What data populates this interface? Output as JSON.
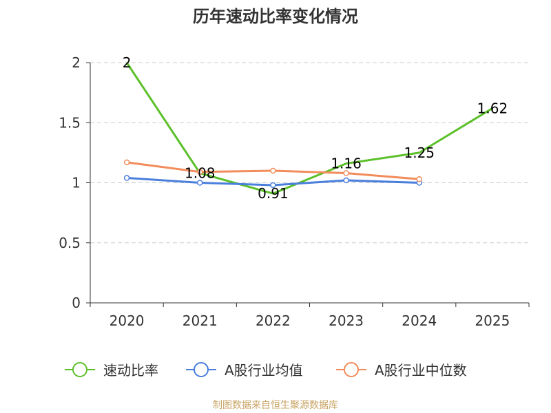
{
  "chart_data": {
    "type": "line",
    "title": "历年速动比率变化情况",
    "categories": [
      "2020",
      "2021",
      "2022",
      "2023",
      "2024",
      "2025"
    ],
    "ylim": [
      0,
      2
    ],
    "yticks": [
      0,
      0.5,
      1,
      1.5,
      2
    ],
    "ytick_labels": [
      "0",
      "0.5",
      "1",
      "1.5",
      "2"
    ],
    "grid": true,
    "legend_position": "bottom",
    "series": [
      {
        "name": "速动比率",
        "color": "#5cc02a",
        "values": [
          2,
          1.08,
          0.91,
          1.16,
          1.25,
          1.62
        ],
        "labels": [
          "2",
          "1.08",
          "0.91",
          "1.16",
          "1.25",
          "1.62"
        ],
        "markers": false,
        "show_labels": true
      },
      {
        "name": "A股行业均值",
        "color": "#4a7fdc",
        "values": [
          1.04,
          1.0,
          0.98,
          1.02,
          1.0,
          null
        ],
        "markers": true,
        "show_labels": false
      },
      {
        "name": "A股行业中位数",
        "color": "#f28c5a",
        "values": [
          1.17,
          1.09,
          1.1,
          1.08,
          1.03,
          null
        ],
        "markers": true,
        "show_labels": false
      }
    ]
  },
  "footer": {
    "source": "制图数据来自恒生聚源数据库"
  }
}
